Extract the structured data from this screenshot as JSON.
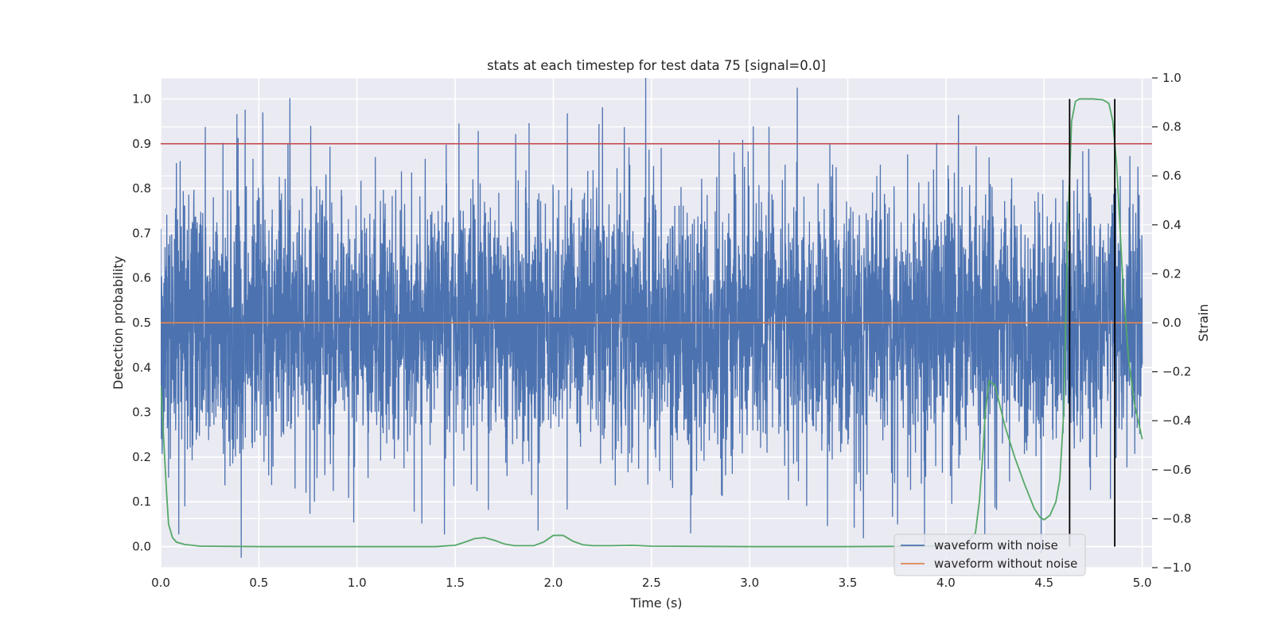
{
  "chart_data": {
    "type": "line",
    "title": "stats at each timestep for test data 75 [signal=0.0]",
    "xlabel": "Time (s)",
    "ylabel": "Detection probability",
    "y2label": "Strain",
    "xlim": [
      0.0,
      5.05
    ],
    "ylim": [
      -0.047,
      1.047
    ],
    "y2lim": [
      -1.0,
      1.0
    ],
    "x_ticks": [
      0.0,
      0.5,
      1.0,
      1.5,
      2.0,
      2.5,
      3.0,
      3.5,
      4.0,
      4.5,
      5.0
    ],
    "x_tick_labels": [
      "0.0",
      "0.5",
      "1.0",
      "1.5",
      "2.0",
      "2.5",
      "3.0",
      "3.5",
      "4.0",
      "4.5",
      "5.0"
    ],
    "y_ticks": [
      0.0,
      0.1,
      0.2,
      0.3,
      0.4,
      0.5,
      0.6,
      0.7,
      0.8,
      0.9,
      1.0
    ],
    "y_tick_labels": [
      "0.0",
      "0.1",
      "0.2",
      "0.3",
      "0.4",
      "0.5",
      "0.6",
      "0.7",
      "0.8",
      "0.9",
      "1.0"
    ],
    "y2_ticks": [
      -1.0,
      -0.8,
      -0.6,
      -0.4,
      -0.2,
      0.0,
      0.2,
      0.4,
      0.6,
      0.8,
      1.0
    ],
    "y2_tick_labels": [
      "−1.0",
      "−0.8",
      "−0.6",
      "−0.4",
      "−0.2",
      "0.0",
      "0.2",
      "0.4",
      "0.6",
      "0.8",
      "1.0"
    ],
    "grid": true,
    "legend_position": "lower-right",
    "series": [
      {
        "name": "waveform with noise",
        "axis": "right",
        "color": "#4c72b0",
        "kind": "noise",
        "approx_range": [
          -0.96,
          0.96
        ],
        "noted_extremes": [
          {
            "x": 0.43,
            "y": 0.87
          },
          {
            "x": 0.41,
            "y": -0.96
          },
          {
            "x": 0.76,
            "y": -0.78
          },
          {
            "x": 1.33,
            "y": -0.82
          },
          {
            "x": 2.25,
            "y": 0.88
          },
          {
            "x": 2.47,
            "y": 1.0
          },
          {
            "x": 2.7,
            "y": -0.86
          },
          {
            "x": 3.58,
            "y": -0.88
          },
          {
            "x": 4.03,
            "y": -0.74
          }
        ]
      },
      {
        "name": "waveform without noise",
        "axis": "right",
        "color": "#dd8452",
        "x": [
          0.0,
          5.0
        ],
        "y": [
          0.0,
          0.0
        ]
      },
      {
        "axis": "left",
        "color": "#55a868",
        "x": [
          0.0,
          0.01,
          0.02,
          0.03,
          0.04,
          0.06,
          0.08,
          0.12,
          0.2,
          0.5,
          1.0,
          1.4,
          1.5,
          1.55,
          1.6,
          1.65,
          1.7,
          1.75,
          1.8,
          1.9,
          1.95,
          2.0,
          2.05,
          2.1,
          2.15,
          2.2,
          2.3,
          2.4,
          2.5,
          3.0,
          3.5,
          4.0,
          4.1,
          4.15,
          4.17,
          4.19,
          4.2,
          4.22,
          4.25,
          4.3,
          4.35,
          4.4,
          4.45,
          4.48,
          4.5,
          4.53,
          4.56,
          4.58,
          4.6,
          4.62,
          4.64,
          4.66,
          4.68,
          4.7,
          4.75,
          4.8,
          4.83,
          4.85,
          4.87,
          4.9,
          4.93,
          4.96,
          5.0
        ],
        "y": [
          0.36,
          0.28,
          0.2,
          0.12,
          0.05,
          0.02,
          0.01,
          0.005,
          0.001,
          0.0,
          0.0,
          0.0,
          0.003,
          0.01,
          0.018,
          0.02,
          0.014,
          0.006,
          0.002,
          0.002,
          0.01,
          0.025,
          0.025,
          0.012,
          0.004,
          0.002,
          0.002,
          0.003,
          0.001,
          0.0,
          0.0,
          0.001,
          0.006,
          0.03,
          0.1,
          0.22,
          0.3,
          0.37,
          0.36,
          0.27,
          0.2,
          0.14,
          0.085,
          0.065,
          0.06,
          0.07,
          0.1,
          0.15,
          0.3,
          0.7,
          0.95,
          0.995,
          1.0,
          1.0,
          1.0,
          0.998,
          0.99,
          0.95,
          0.85,
          0.6,
          0.42,
          0.32,
          0.24
        ]
      }
    ],
    "threshold_line": {
      "axis": "left",
      "y": 0.9,
      "color": "#c44e52"
    },
    "event_markers": {
      "color": "#000000",
      "x": [
        4.63,
        4.86
      ],
      "ymin": 0.0,
      "ymax": 1.0
    },
    "legend": [
      {
        "label": "waveform with noise",
        "color": "#4c72b0"
      },
      {
        "label": "waveform without noise",
        "color": "#dd8452"
      }
    ]
  }
}
